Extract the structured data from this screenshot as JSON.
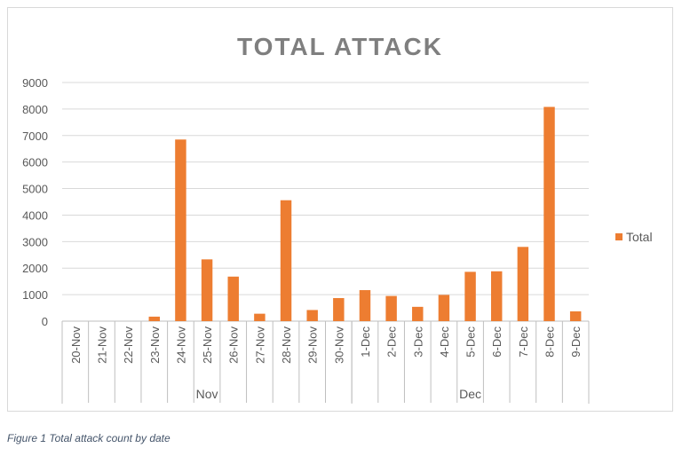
{
  "chart_data": {
    "type": "bar",
    "title": "TOTAL ATTACK",
    "categories": [
      "20-Nov",
      "21-Nov",
      "22-Nov",
      "23-Nov",
      "24-Nov",
      "25-Nov",
      "26-Nov",
      "27-Nov",
      "28-Nov",
      "29-Nov",
      "30-Nov",
      "1-Dec",
      "2-Dec",
      "3-Dec",
      "4-Dec",
      "5-Dec",
      "6-Dec",
      "7-Dec",
      "8-Dec",
      "9-Dec"
    ],
    "groups": [
      {
        "label": "Nov",
        "count": 11
      },
      {
        "label": "Dec",
        "count": 9
      }
    ],
    "series": [
      {
        "name": "Total",
        "values": [
          0,
          0,
          0,
          170,
          6850,
          2330,
          1680,
          280,
          4560,
          420,
          870,
          1170,
          950,
          540,
          990,
          1860,
          1880,
          2800,
          8080,
          370
        ]
      }
    ],
    "ylim": [
      0,
      9000
    ],
    "yticks": [
      "0",
      "1000",
      "2000",
      "3000",
      "4000",
      "5000",
      "6000",
      "7000",
      "8000",
      "9000"
    ],
    "grid": true,
    "legend_position": "right",
    "colors": {
      "bar": "#ED7D31",
      "title": "#7f7f7f",
      "grid": "#d9d9d9",
      "axis_text": "#595959"
    }
  },
  "caption": "Figure 1 Total attack count by date"
}
